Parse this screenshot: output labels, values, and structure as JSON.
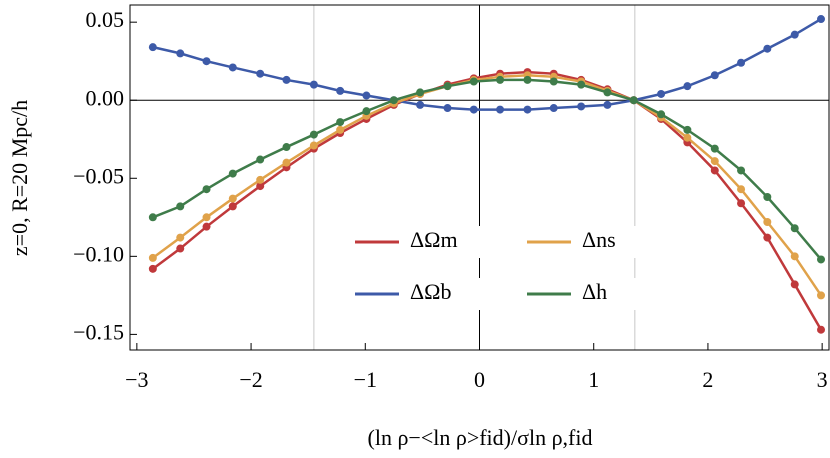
{
  "chart_data": {
    "type": "line",
    "x_label": "(ln ρ−<ln ρ>fid)/σln ρ,fid",
    "y_label": "z=0, R=20 Mpc/h",
    "x": [
      -2.86,
      -2.62,
      -2.39,
      -2.16,
      -1.92,
      -1.69,
      -1.45,
      -1.22,
      -0.99,
      -0.75,
      -0.52,
      -0.28,
      -0.05,
      0.18,
      0.42,
      0.65,
      0.89,
      1.12,
      1.35,
      1.59,
      1.82,
      2.06,
      2.29,
      2.52,
      2.76,
      2.99
    ],
    "series": [
      {
        "name": "ΔΩm",
        "color": "#c0393b",
        "values": [
          -0.108,
          -0.095,
          -0.081,
          -0.068,
          -0.055,
          -0.043,
          -0.031,
          -0.021,
          -0.012,
          -0.003,
          0.004,
          0.01,
          0.014,
          0.017,
          0.018,
          0.017,
          0.013,
          0.007,
          0.0,
          -0.012,
          -0.027,
          -0.045,
          -0.066,
          -0.088,
          -0.118,
          -0.147
        ]
      },
      {
        "name": "ΔΩb",
        "color": "#3d5aa8",
        "values": [
          0.034,
          0.03,
          0.025,
          0.021,
          0.017,
          0.013,
          0.01,
          0.006,
          0.003,
          0.0,
          -0.003,
          -0.005,
          -0.006,
          -0.006,
          -0.006,
          -0.005,
          -0.004,
          -0.003,
          0.0,
          0.004,
          0.009,
          0.016,
          0.024,
          0.033,
          0.042,
          0.052
        ]
      },
      {
        "name": "Δns",
        "color": "#e0a24a",
        "values": [
          -0.101,
          -0.088,
          -0.075,
          -0.063,
          -0.051,
          -0.04,
          -0.029,
          -0.019,
          -0.01,
          -0.002,
          0.004,
          0.009,
          0.013,
          0.015,
          0.016,
          0.015,
          0.012,
          0.006,
          0.0,
          -0.011,
          -0.024,
          -0.039,
          -0.057,
          -0.078,
          -0.1,
          -0.125
        ]
      },
      {
        "name": "Δh",
        "color": "#3f7c4a",
        "values": [
          -0.075,
          -0.068,
          -0.057,
          -0.047,
          -0.038,
          -0.03,
          -0.022,
          -0.014,
          -0.007,
          0.0,
          0.005,
          0.009,
          0.012,
          0.013,
          0.013,
          0.012,
          0.01,
          0.005,
          0.0,
          -0.009,
          -0.019,
          -0.031,
          -0.045,
          -0.062,
          -0.082,
          -0.102
        ]
      }
    ],
    "xlim": [
      -3.06,
      3.06
    ],
    "ylim": [
      -0.16,
      0.061
    ],
    "xticks": [
      {
        "value": -3,
        "label": "−3"
      },
      {
        "value": -2,
        "label": "−2"
      },
      {
        "value": -1,
        "label": "−1"
      },
      0,
      1,
      2,
      3
    ],
    "yticks": [
      {
        "value": 0.05,
        "label": "0.05"
      },
      {
        "value": 0,
        "label": "0.00"
      },
      {
        "value": -0.05,
        "label": "−0.05"
      },
      {
        "value": -0.1,
        "label": "−0.10"
      },
      {
        "value": -0.15,
        "label": "−0.15"
      }
    ],
    "vlines": [
      -1.45,
      1.36
    ]
  }
}
